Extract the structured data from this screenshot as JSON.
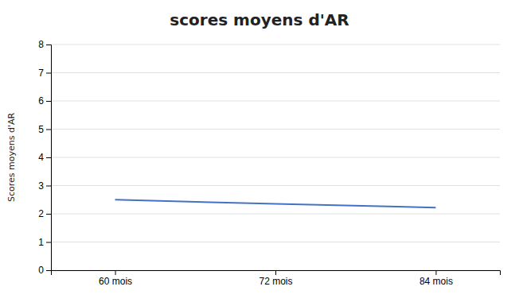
{
  "chart_data": {
    "type": "line",
    "title": "scores moyens d'AR",
    "ylabel": "Scores moyens d'AR",
    "categories": [
      "60 mois",
      "72 mois",
      "84 mois"
    ],
    "values": [
      2.5,
      2.35,
      2.22
    ],
    "color": "#4472C4",
    "ylim": [
      0,
      8
    ],
    "yticks": [
      0,
      1,
      2,
      3,
      4,
      5,
      6,
      7,
      8
    ],
    "grid": true
  }
}
